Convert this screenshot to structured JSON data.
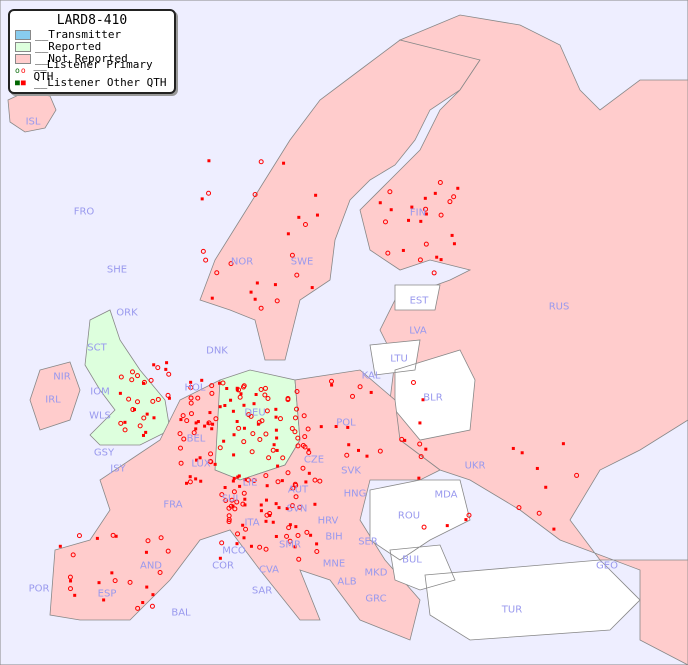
{
  "legend": {
    "title": "LARD8-410",
    "items": [
      {
        "label": "__Transmitter",
        "color": "#88ccee"
      },
      {
        "label": "__Reported",
        "color": "#ddffdd"
      },
      {
        "label": "__Not Reported",
        "color": "#ffcccc"
      },
      {
        "label": "__Listener Primary QTH",
        "marker": "open-circle"
      },
      {
        "label": "__Listener Other QTH",
        "marker": "filled-square"
      }
    ]
  },
  "colors": {
    "sea": "#eeeeff",
    "reported": "#ddffdd",
    "not_reported": "#ffcccc",
    "no_data": "#ffffff",
    "marker": "#ff0000",
    "marker_reported": "#006600",
    "label": "#9999ee"
  },
  "labels": [
    "ISL",
    "FRO",
    "SHE",
    "ORK",
    "NOR",
    "SWE",
    "FIN",
    "EST",
    "RUS",
    "LVA",
    "LTU",
    "KAL",
    "BLR",
    "DNK",
    "SCT",
    "NIR",
    "IRL",
    "IOM",
    "WLS",
    "HOL",
    "BEL",
    "DEU",
    "POL",
    "UKR",
    "GSY",
    "JSY",
    "LUX",
    "CZE",
    "SVK",
    "MDA",
    "FRA",
    "SUI",
    "LIE",
    "AUT",
    "HNG",
    "ROU",
    "SVN",
    "HRV",
    "BIH",
    "SER",
    "ITA",
    "SMR",
    "MCO",
    "COR",
    "CVA",
    "MNE",
    "BUL",
    "GEO",
    "POR",
    "AND",
    "ESP",
    "SAR",
    "ALB",
    "MKD",
    "GRC",
    "TUR",
    "BAL"
  ]
}
